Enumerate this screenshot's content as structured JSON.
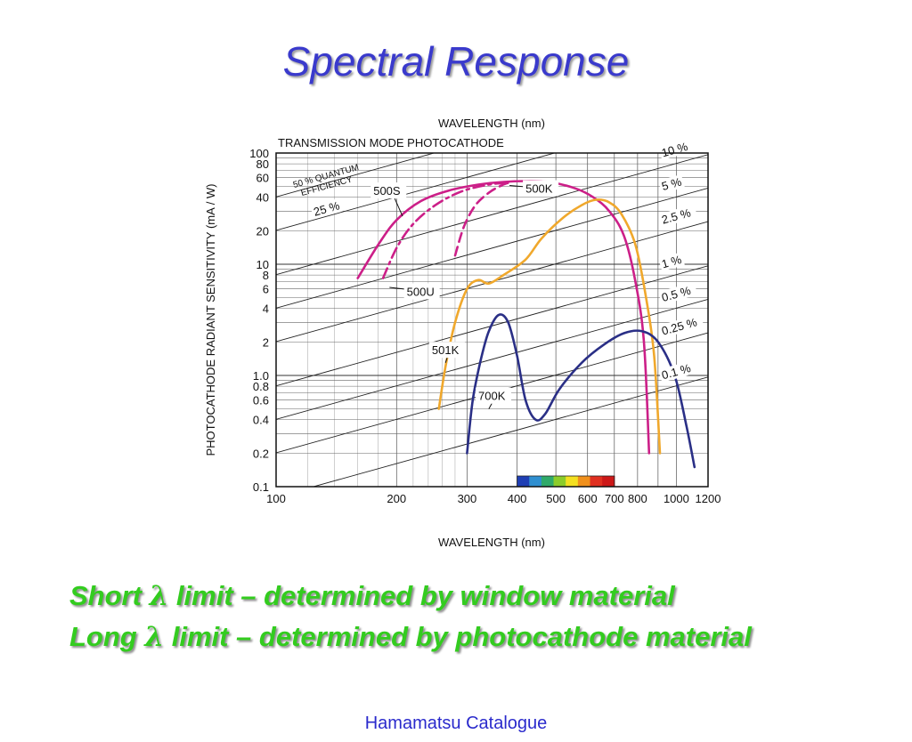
{
  "slide": {
    "title": "Spectral Response",
    "bullets": [
      {
        "before": "Short ",
        "symbol": "λ",
        "after": " limit – determined by window material"
      },
      {
        "before": "Long ",
        "symbol": "λ",
        "after": " limit – determined by photocathode material"
      }
    ],
    "source": "Hamamatsu Catalogue"
  },
  "chart_data": {
    "type": "line",
    "title_top": "WAVELENGTH (nm)",
    "subtitle": "TRANSMISSION MODE PHOTOCATHODE",
    "xlabel": "WAVELENGTH (nm)",
    "ylabel": "PHOTOCATHODE RADIANT SENSITIVITY (mA / W)",
    "x_scale": "log",
    "y_scale": "log",
    "xlim": [
      100,
      1200
    ],
    "ylim": [
      0.1,
      100
    ],
    "x_ticks": [
      {
        "v": 100,
        "label": "100"
      },
      {
        "v": 200,
        "label": "200"
      },
      {
        "v": 300,
        "label": "300"
      },
      {
        "v": 400,
        "label": "400"
      },
      {
        "v": 500,
        "label": "500"
      },
      {
        "v": 600,
        "label": "600"
      },
      {
        "v": 700,
        "label": "700"
      },
      {
        "v": 800,
        "label": "800"
      },
      {
        "v": 1000,
        "label": "1000"
      },
      {
        "v": 1200,
        "label": "1200"
      }
    ],
    "y_ticks": [
      {
        "v": 0.1,
        "label": "0.1"
      },
      {
        "v": 0.2,
        "label": "0.2"
      },
      {
        "v": 0.4,
        "label": "0.4"
      },
      {
        "v": 0.6,
        "label": "0.6"
      },
      {
        "v": 0.8,
        "label": "0.8"
      },
      {
        "v": 1,
        "label": "1.0"
      },
      {
        "v": 2,
        "label": "2"
      },
      {
        "v": 4,
        "label": "4"
      },
      {
        "v": 6,
        "label": "6"
      },
      {
        "v": 8,
        "label": "8"
      },
      {
        "v": 10,
        "label": "10"
      },
      {
        "v": 20,
        "label": "20"
      },
      {
        "v": 40,
        "label": "40"
      },
      {
        "v": 60,
        "label": "60"
      },
      {
        "v": 80,
        "label": "80"
      },
      {
        "v": 100,
        "label": "100"
      }
    ],
    "grid": true,
    "quantum_efficiency_lines": [
      {
        "label": "50 % QUANTUM EFFICIENCY",
        "qe": 50
      },
      {
        "label": "25 %",
        "qe": 25
      },
      {
        "label": "10 %",
        "qe": 10
      },
      {
        "label": "5 %",
        "qe": 5
      },
      {
        "label": "2.5 %",
        "qe": 2.5
      },
      {
        "label": "1 %",
        "qe": 1
      },
      {
        "label": "0.5 %",
        "qe": 0.5
      },
      {
        "label": "0.25 %",
        "qe": 0.25
      },
      {
        "label": "0.1 %",
        "qe": 0.1
      }
    ],
    "series": [
      {
        "name": "500S",
        "color": "#cc1f88",
        "dash": "solid",
        "points": [
          [
            160,
            7.5
          ],
          [
            180,
            15
          ],
          [
            200,
            25
          ],
          [
            230,
            37
          ],
          [
            270,
            46
          ],
          [
            320,
            52
          ],
          [
            370,
            55
          ],
          [
            420,
            56
          ],
          [
            480,
            55
          ],
          [
            560,
            48
          ],
          [
            620,
            40
          ],
          [
            680,
            30
          ],
          [
            740,
            18
          ],
          [
            790,
            7
          ],
          [
            830,
            2
          ],
          [
            855,
            0.2
          ]
        ]
      },
      {
        "name": "500U",
        "color": "#cc1f88",
        "dash": "dashdot",
        "points": [
          [
            185,
            7.5
          ],
          [
            200,
            14
          ],
          [
            220,
            23
          ],
          [
            250,
            34
          ],
          [
            290,
            45
          ],
          [
            340,
            52
          ],
          [
            380,
            54
          ]
        ]
      },
      {
        "name": "500K",
        "color": "#cc1f88",
        "dash": "dashed",
        "points": [
          [
            280,
            12
          ],
          [
            295,
            22
          ],
          [
            315,
            34
          ],
          [
            340,
            44
          ],
          [
            365,
            51
          ],
          [
            380,
            54
          ]
        ]
      },
      {
        "name": "501K",
        "color": "#f0a82c",
        "dash": "solid",
        "points": [
          [
            255,
            0.5
          ],
          [
            265,
            1.2
          ],
          [
            280,
            3
          ],
          [
            300,
            6
          ],
          [
            320,
            7.2
          ],
          [
            340,
            6.7
          ],
          [
            370,
            8
          ],
          [
            420,
            11
          ],
          [
            460,
            17
          ],
          [
            520,
            26
          ],
          [
            580,
            34
          ],
          [
            630,
            38
          ],
          [
            680,
            36
          ],
          [
            730,
            28
          ],
          [
            790,
            15
          ],
          [
            840,
            5
          ],
          [
            880,
            1.5
          ],
          [
            910,
            0.2
          ]
        ]
      },
      {
        "name": "700K",
        "color": "#2a2f86",
        "dash": "solid",
        "points": [
          [
            300,
            0.2
          ],
          [
            310,
            0.6
          ],
          [
            325,
            1.4
          ],
          [
            340,
            2.5
          ],
          [
            360,
            3.5
          ],
          [
            380,
            3
          ],
          [
            400,
            1.5
          ],
          [
            420,
            0.6
          ],
          [
            445,
            0.4
          ],
          [
            470,
            0.45
          ],
          [
            510,
            0.75
          ],
          [
            580,
            1.3
          ],
          [
            660,
            1.9
          ],
          [
            740,
            2.4
          ],
          [
            820,
            2.5
          ],
          [
            900,
            2
          ],
          [
            990,
            1
          ],
          [
            1060,
            0.35
          ],
          [
            1110,
            0.15
          ]
        ]
      }
    ],
    "series_labels": [
      {
        "text": "500S",
        "x": 175,
        "y": 42,
        "arrow_to": [
          207,
          27
        ]
      },
      {
        "text": "500U",
        "x": 212,
        "y": 5.2,
        "arrow_to": [
          192,
          6.2
        ]
      },
      {
        "text": "500K",
        "x": 420,
        "y": 44,
        "arrow_to": [
          383,
          51
        ]
      },
      {
        "text": "501K",
        "x": 245,
        "y": 1.55,
        "arrow_to": [
          265,
          1.3
        ]
      },
      {
        "text": "700K",
        "x": 320,
        "y": 0.6,
        "arrow_to": [
          340,
          0.5
        ]
      }
    ],
    "visible_spectrum_band": {
      "from": 400,
      "to": 700,
      "colors": [
        "#1f3fb4",
        "#2f8fd0",
        "#2faa6a",
        "#8ccc2a",
        "#f4e020",
        "#f0901c",
        "#e03020",
        "#cc1818"
      ]
    }
  }
}
